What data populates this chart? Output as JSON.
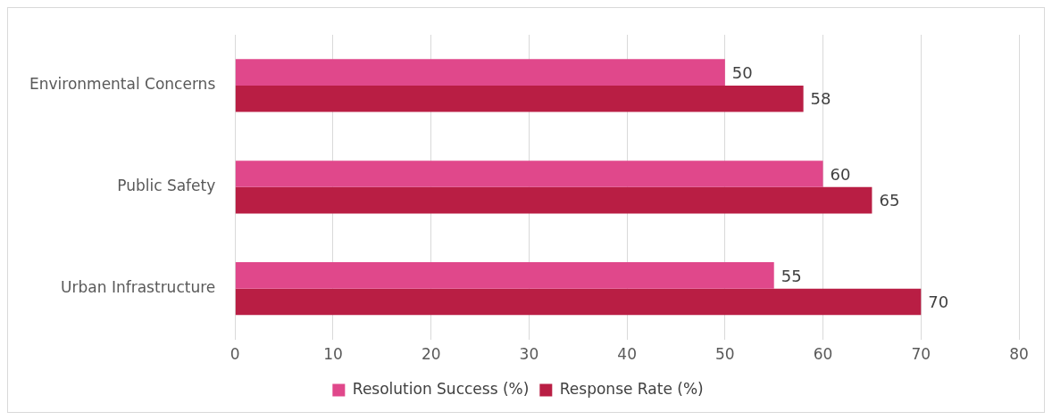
{
  "chart_data": {
    "type": "bar",
    "orientation": "horizontal",
    "categories": [
      "Environmental Concerns",
      "Public Safety",
      "Urban Infrastructure"
    ],
    "series": [
      {
        "name": "Resolution Success (%)",
        "color": "#e0488b",
        "values": [
          50,
          60,
          55
        ]
      },
      {
        "name": "Response Rate (%)",
        "color": "#b91e44",
        "values": [
          58,
          65,
          70
        ]
      }
    ],
    "xlim": [
      0,
      80
    ],
    "xticks": [
      0,
      10,
      20,
      30,
      40,
      50,
      60,
      70,
      80
    ],
    "grid": "x",
    "legend": "bottom",
    "data_labels": true
  }
}
